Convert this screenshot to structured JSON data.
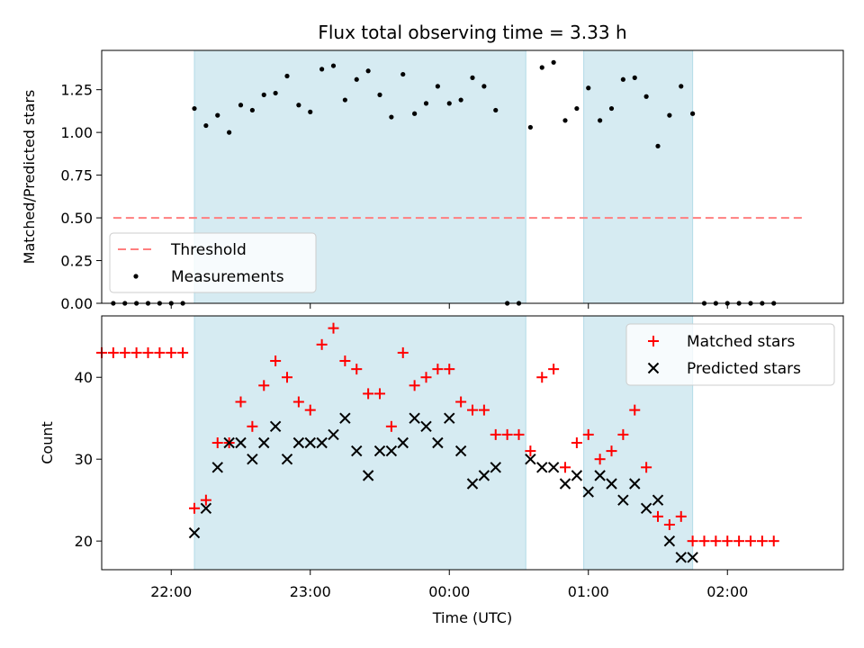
{
  "chart_data": [
    {
      "type": "scatter",
      "title": "Flux total observing time = 3.33 h",
      "xlabel": "",
      "ylabel": "Matched/Predicted stars",
      "xlim": [
        "21:30",
        "02:50"
      ],
      "ylim": [
        0,
        1.48
      ],
      "yticks": [
        0.0,
        0.25,
        0.5,
        0.75,
        1.0,
        1.25
      ],
      "ytick_labels": [
        "0.00",
        "0.25",
        "0.50",
        "0.75",
        "1.00",
        "1.25"
      ],
      "grid": false,
      "legend_position": "lower-left",
      "shaded_intervals": [
        [
          "22:10",
          "00:33"
        ],
        [
          "00:58",
          "01:45"
        ]
      ],
      "threshold": {
        "name": "Threshold",
        "value": 0.5,
        "x_range": [
          "21:35",
          "02:33"
        ],
        "color": "#ff7f7f"
      },
      "series": [
        {
          "name": "Measurements",
          "color": "#000000",
          "x": [
            "21:35",
            "21:40",
            "21:45",
            "21:50",
            "21:55",
            "22:00",
            "22:05",
            "22:10",
            "22:15",
            "22:20",
            "22:25",
            "22:30",
            "22:35",
            "22:40",
            "22:45",
            "22:50",
            "22:55",
            "23:00",
            "23:05",
            "23:10",
            "23:15",
            "23:20",
            "23:25",
            "23:30",
            "23:35",
            "23:40",
            "23:45",
            "23:50",
            "23:55",
            "00:00",
            "00:05",
            "00:10",
            "00:15",
            "00:20",
            "00:25",
            "00:30",
            "00:35",
            "00:40",
            "00:45",
            "00:50",
            "00:55",
            "01:00",
            "01:05",
            "01:10",
            "01:15",
            "01:20",
            "01:25",
            "01:30",
            "01:35",
            "01:40",
            "01:45",
            "01:50",
            "01:55",
            "02:00",
            "02:05",
            "02:10",
            "02:15",
            "02:20"
          ],
          "y": [
            0,
            0,
            0,
            0,
            0,
            0,
            0,
            1.14,
            1.04,
            1.1,
            1.0,
            1.16,
            1.13,
            1.22,
            1.23,
            1.33,
            1.16,
            1.12,
            1.37,
            1.39,
            1.19,
            1.31,
            1.36,
            1.22,
            1.09,
            1.34,
            1.11,
            1.17,
            1.27,
            1.17,
            1.19,
            1.32,
            1.27,
            1.13,
            0,
            0,
            1.03,
            1.38,
            1.41,
            1.07,
            1.14,
            1.26,
            1.07,
            1.14,
            1.31,
            1.32,
            1.21,
            0.92,
            1.1,
            1.27,
            1.11,
            0,
            0,
            0,
            0,
            0,
            0,
            0
          ]
        }
      ]
    },
    {
      "type": "scatter",
      "xlabel": "Time (UTC)",
      "ylabel": "Count",
      "xlim": [
        "21:30",
        "02:50"
      ],
      "ylim": [
        16.5,
        47.5
      ],
      "yticks": [
        20,
        30,
        40
      ],
      "ytick_labels": [
        "20",
        "30",
        "40"
      ],
      "xticks": [
        "22:00",
        "23:00",
        "00:00",
        "01:00",
        "02:00"
      ],
      "xtick_labels": [
        "22:00",
        "23:00",
        "00:00",
        "01:00",
        "02:00"
      ],
      "grid": false,
      "legend_position": "upper-right",
      "shaded_intervals": [
        [
          "22:10",
          "00:33"
        ],
        [
          "00:58",
          "01:45"
        ]
      ],
      "series": [
        {
          "name": "Matched stars",
          "marker": "plus",
          "color": "#ff0000",
          "x": [
            "21:30",
            "21:35",
            "21:40",
            "21:45",
            "21:50",
            "21:55",
            "22:00",
            "22:05",
            "22:10",
            "22:15",
            "22:20",
            "22:25",
            "22:30",
            "22:35",
            "22:40",
            "22:45",
            "22:50",
            "22:55",
            "23:00",
            "23:05",
            "23:10",
            "23:15",
            "23:20",
            "23:25",
            "23:30",
            "23:35",
            "23:40",
            "23:45",
            "23:50",
            "23:55",
            "00:00",
            "00:05",
            "00:10",
            "00:15",
            "00:20",
            "00:25",
            "00:30",
            "00:35",
            "00:40",
            "00:45",
            "00:50",
            "00:55",
            "01:00",
            "01:05",
            "01:10",
            "01:15",
            "01:20",
            "01:25",
            "01:30",
            "01:35",
            "01:40",
            "01:45",
            "01:50",
            "01:55",
            "02:00",
            "02:05",
            "02:10",
            "02:15",
            "02:20"
          ],
          "y": [
            43,
            43,
            43,
            43,
            43,
            43,
            43,
            43,
            24,
            25,
            32,
            32,
            37,
            34,
            39,
            42,
            40,
            37,
            36,
            44,
            46,
            42,
            41,
            38,
            38,
            34,
            43,
            39,
            40,
            41,
            41,
            37,
            36,
            36,
            33,
            33,
            33,
            31,
            40,
            41,
            29,
            32,
            33,
            30,
            31,
            33,
            36,
            29,
            23,
            22,
            23,
            20,
            20,
            20,
            20,
            20,
            20,
            20,
            20
          ]
        },
        {
          "name": "Predicted stars",
          "marker": "x",
          "color": "#000000",
          "x": [
            "22:10",
            "22:15",
            "22:20",
            "22:25",
            "22:30",
            "22:35",
            "22:40",
            "22:45",
            "22:50",
            "22:55",
            "23:00",
            "23:05",
            "23:10",
            "23:15",
            "23:20",
            "23:25",
            "23:30",
            "23:35",
            "23:40",
            "23:45",
            "23:50",
            "23:55",
            "00:00",
            "00:05",
            "00:10",
            "00:15",
            "00:20",
            "00:35",
            "00:40",
            "00:45",
            "00:50",
            "00:55",
            "01:00",
            "01:05",
            "01:10",
            "01:15",
            "01:20",
            "01:25",
            "01:30",
            "01:35",
            "01:40",
            "01:45"
          ],
          "y": [
            21,
            24,
            29,
            32,
            32,
            30,
            32,
            34,
            30,
            32,
            32,
            32,
            33,
            35,
            31,
            28,
            31,
            31,
            32,
            35,
            34,
            32,
            35,
            31,
            27,
            28,
            29,
            30,
            29,
            29,
            27,
            28,
            26,
            28,
            27,
            25,
            27,
            24,
            25,
            20,
            18,
            18
          ]
        }
      ]
    }
  ]
}
